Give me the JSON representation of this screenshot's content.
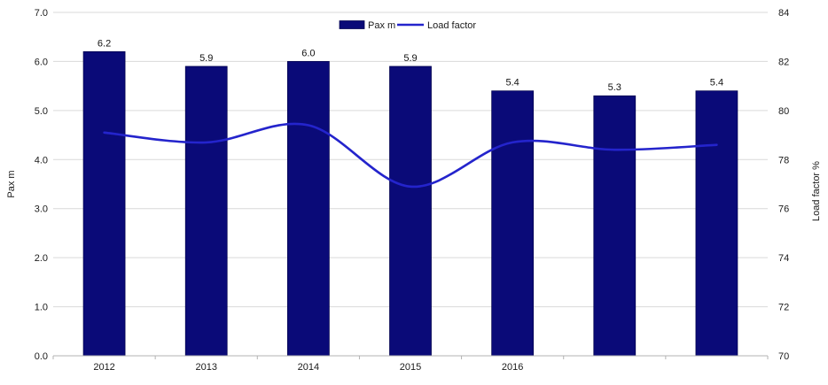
{
  "chart_data": {
    "type": "combo_bar_line",
    "categories": [
      "2012",
      "2013",
      "2014",
      "2015",
      "2016",
      "",
      ""
    ],
    "series": [
      {
        "name": "Pax m",
        "type": "bar",
        "axis": "left",
        "values": [
          6.2,
          5.9,
          6.0,
          5.9,
          5.4,
          5.3,
          5.4
        ],
        "labels": [
          "6.2",
          "5.9",
          "6.0",
          "5.9",
          "5.4",
          "5.3",
          "5.4"
        ],
        "color": "#0a0a78"
      },
      {
        "name": "Load factor",
        "type": "line",
        "axis": "right",
        "values": [
          79.1,
          78.7,
          79.4,
          76.9,
          78.7,
          78.4,
          78.6
        ],
        "color": "#2424cc"
      }
    ],
    "left_axis": {
      "title": "Pax m",
      "min": 0,
      "max": 7,
      "step": 1,
      "tick_labels": [
        "0.0",
        "1.0",
        "2.0",
        "3.0",
        "4.0",
        "5.0",
        "6.0",
        "7.0"
      ]
    },
    "right_axis": {
      "title": "Load factor %",
      "min": 70,
      "max": 84,
      "step": 2,
      "tick_labels": [
        "70",
        "72",
        "74",
        "76",
        "78",
        "80",
        "82",
        "84"
      ]
    },
    "legend": {
      "position": "top-center",
      "items": [
        {
          "label": "Pax m",
          "marker": "bar"
        },
        {
          "label": "Load factor",
          "marker": "line"
        }
      ]
    },
    "grid": true,
    "colors": {
      "bar": "#0a0a78",
      "bar_border": "#00004d",
      "line": "#2424cc",
      "grid": "#d9d9d9",
      "axis": "#b3b3b3",
      "text": "#1a1a1a",
      "background": "#ffffff"
    }
  }
}
